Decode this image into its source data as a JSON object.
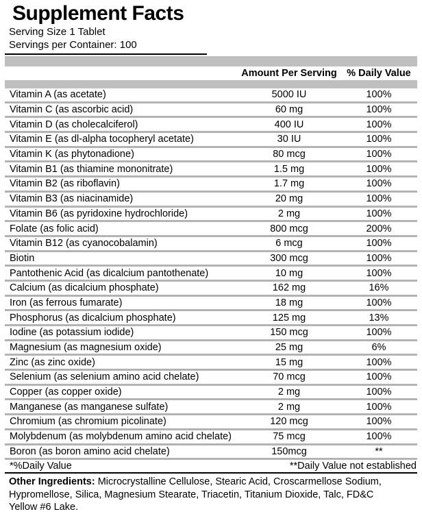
{
  "header": {
    "title": "Supplement Facts",
    "serving_size": "Serving Size 1 Tablet",
    "servings_per_container": "Servings per Container: 100"
  },
  "table": {
    "columns": {
      "amount": "Amount Per Serving",
      "daily_value": "% Daily Value"
    },
    "rows": [
      {
        "name": "Vitamin A (as acetate)",
        "amount": "5000 IU",
        "daily_value": "100%"
      },
      {
        "name": "Vitamin C (as ascorbic acid)",
        "amount": "60 mg",
        "daily_value": "100%"
      },
      {
        "name": "Vitamin D (as cholecalciferol)",
        "amount": "400 IU",
        "daily_value": "100%"
      },
      {
        "name": "Vitamin E (as dl-alpha tocopheryl acetate)",
        "amount": "30 IU",
        "daily_value": "100%"
      },
      {
        "name": "Vitamin K (as phytonadione)",
        "amount": "80 mcg",
        "daily_value": "100%"
      },
      {
        "name": "Vitamin B1 (as thiamine mononitrate)",
        "amount": "1.5 mg",
        "daily_value": "100%"
      },
      {
        "name": "Vitamin B2 (as riboflavin)",
        "amount": "1.7 mg",
        "daily_value": "100%"
      },
      {
        "name": "Vitamin B3 (as niacinamide)",
        "amount": "20 mg",
        "daily_value": "100%"
      },
      {
        "name": "Vitamin B6 (as pyridoxine hydrochloride)",
        "amount": "2 mg",
        "daily_value": "100%"
      },
      {
        "name": "Folate (as folic acid)",
        "amount": "800 mcg",
        "daily_value": "200%"
      },
      {
        "name": "Vitamin B12 (as cyanocobalamin)",
        "amount": "6 mcg",
        "daily_value": "100%"
      },
      {
        "name": "Biotin",
        "amount": "300 mcg",
        "daily_value": "100%"
      },
      {
        "name": "Pantothenic Acid (as dicalcium pantothenate)",
        "amount": "10 mg",
        "daily_value": "100%"
      },
      {
        "name": "Calcium (as dicalcium phosphate)",
        "amount": "162 mg",
        "daily_value": "16%"
      },
      {
        "name": "Iron (as ferrous fumarate)",
        "amount": "18 mg",
        "daily_value": "100%"
      },
      {
        "name": "Phosphorus (as dicalcium phosphate)",
        "amount": "125 mg",
        "daily_value": "13%"
      },
      {
        "name": "Iodine (as potassium iodide)",
        "amount": "150 mcg",
        "daily_value": "100%"
      },
      {
        "name": "Magnesium (as magnesium oxide)",
        "amount": "25 mg",
        "daily_value": "6%"
      },
      {
        "name": "Zinc (as zinc oxide)",
        "amount": "15 mg",
        "daily_value": "100%"
      },
      {
        "name": "Selenium (as selenium amino acid chelate)",
        "amount": "70 mcg",
        "daily_value": "100%"
      },
      {
        "name": "Copper (as copper oxide)",
        "amount": "2 mg",
        "daily_value": "100%"
      },
      {
        "name": "Manganese (as manganese sulfate)",
        "amount": "2 mg",
        "daily_value": "100%"
      },
      {
        "name": "Chromium (as chromium picolinate)",
        "amount": "120 mcg",
        "daily_value": "100%"
      },
      {
        "name": "Molybdenum (as molybdenum amino acid chelate)",
        "amount": "75 mcg",
        "daily_value": "100%"
      },
      {
        "name": "Boron (as boron amino acid chelate)",
        "amount": "150mcg",
        "daily_value": "**"
      }
    ],
    "footnote_left": "*%Daily Value",
    "footnote_right": "**Daily Value not established"
  },
  "other_ingredients": {
    "label": "Other Ingredients:",
    "text": " Microcrystalline Cellulose, Stearic Acid, Croscarmellose Sodium, Hypromellose, Silica, Magnesium Stearate, Triacetin, Titanium Dioxide, Talc, FD&C Yellow #6 Lake."
  },
  "colors": {
    "bar_gray": "#bfbfbf",
    "separator_gray": "#b3b3b3",
    "rule_black": "#000000",
    "text": "#000000"
  }
}
